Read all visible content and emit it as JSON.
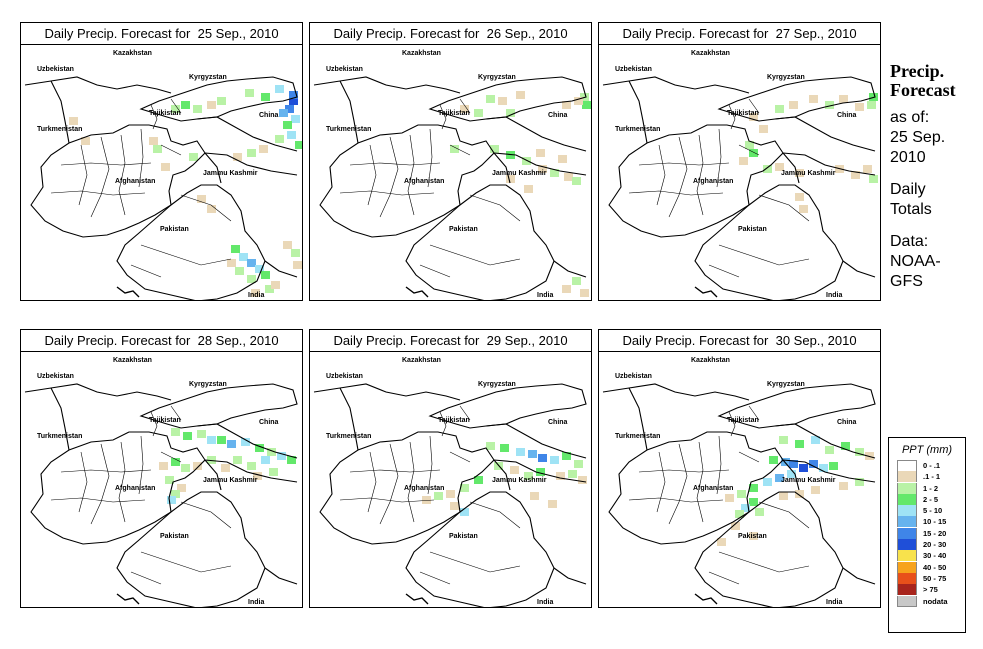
{
  "panels": [
    {
      "title": "Daily Precip. Forecast for  25 Sep., 2010"
    },
    {
      "title": "Daily Precip. Forecast for  26 Sep., 2010"
    },
    {
      "title": "Daily Precip. Forecast for  27 Sep., 2010"
    },
    {
      "title": "Daily Precip. Forecast for  28 Sep., 2010"
    },
    {
      "title": "Daily Precip. Forecast for  29 Sep., 2010"
    },
    {
      "title": "Daily Precip. Forecast for  30 Sep., 2010"
    }
  ],
  "map_labels": {
    "kazakhstan": "Kazakhstan",
    "uzbekistan": "Uzbekistan",
    "kyrgyzstan": "Kyrgyzstan",
    "tajikistan": "Tajikistan",
    "china": "China",
    "turkmenistan": "Turkmenistan",
    "afghanistan": "Afghanistan",
    "jammu_kashmir": "Jammu Kashmir",
    "pakistan": "Pakistan",
    "india": "India"
  },
  "sidebar": {
    "title_line1": "Precip.",
    "title_line2": "Forecast",
    "asof_line1": "as of:",
    "asof_line2": "25 Sep.",
    "asof_line3": "2010",
    "totals_line1": "Daily",
    "totals_line2": "Totals",
    "data_line1": "Data:",
    "data_line2": "NOAA-",
    "data_line3": "GFS"
  },
  "legend": {
    "title": "PPT (mm)",
    "items": [
      {
        "label": "0 - .1",
        "color": "#ffffff"
      },
      {
        "label": ".1 - 1",
        "color": "#ead8b8"
      },
      {
        "label": "1 - 2",
        "color": "#b9f2a6"
      },
      {
        "label": "2 - 5",
        "color": "#63e86b"
      },
      {
        "label": "5 - 10",
        "color": "#9fe3f5"
      },
      {
        "label": "10 - 15",
        "color": "#66b3ee"
      },
      {
        "label": "15 - 20",
        "color": "#3f85e8"
      },
      {
        "label": "20 - 30",
        "color": "#1f4fd8"
      },
      {
        "label": "30 - 40",
        "color": "#f8e24c"
      },
      {
        "label": "40 - 50",
        "color": "#f7a31c"
      },
      {
        "label": "50 - 75",
        "color": "#e8501a"
      },
      {
        "label": "> 75",
        "color": "#a8241c"
      },
      {
        "label": "nodata",
        "color": "#c8c8c8"
      }
    ]
  }
}
